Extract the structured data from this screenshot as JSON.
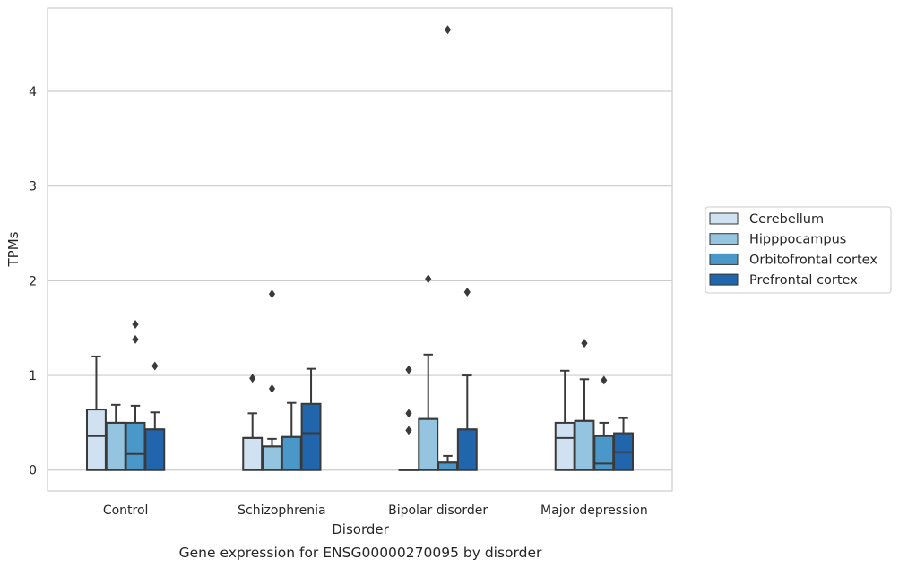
{
  "chart_data": {
    "type": "boxplot",
    "title": "",
    "xlabel": "Disorder",
    "ylabel": "TPMs",
    "caption": "Gene expression for ENSG00000270095 by disorder",
    "ylim": [
      -0.22,
      4.88
    ],
    "yticks": [
      0,
      1,
      2,
      3,
      4
    ],
    "grid": "horizontal",
    "legend_position": "right",
    "categories": [
      "Control",
      "Schizophrenia",
      "Bipolar disorder",
      "Major depression"
    ],
    "series": [
      {
        "name": "Cerebellum",
        "color": "#d0e1f2",
        "boxes": [
          {
            "q1": 0,
            "median": 0.36,
            "q3": 0.64,
            "whisker_low": 0,
            "whisker_high": 1.2,
            "fliers": []
          },
          {
            "q1": 0,
            "median": 0.34,
            "q3": 0.34,
            "whisker_low": 0,
            "whisker_high": 0.6,
            "fliers": [
              0.97
            ]
          },
          {
            "q1": 0,
            "median": 0,
            "q3": 0,
            "whisker_low": 0,
            "whisker_high": 0,
            "fliers": [
              0.42,
              0.6,
              1.06
            ]
          },
          {
            "q1": 0,
            "median": 0.34,
            "q3": 0.5,
            "whisker_low": 0,
            "whisker_high": 1.05,
            "fliers": []
          }
        ]
      },
      {
        "name": "Hipppocampus",
        "color": "#94c4df",
        "boxes": [
          {
            "q1": 0,
            "median": 0.5,
            "q3": 0.5,
            "whisker_low": 0,
            "whisker_high": 0.69,
            "fliers": []
          },
          {
            "q1": 0,
            "median": 0.25,
            "q3": 0.25,
            "whisker_low": 0,
            "whisker_high": 0.33,
            "fliers": [
              0.86,
              1.86
            ]
          },
          {
            "q1": 0,
            "median": 0.54,
            "q3": 0.54,
            "whisker_low": 0,
            "whisker_high": 1.22,
            "fliers": [
              2.02
            ]
          },
          {
            "q1": 0,
            "median": 0.52,
            "q3": 0.52,
            "whisker_low": 0,
            "whisker_high": 0.96,
            "fliers": [
              1.34
            ]
          }
        ]
      },
      {
        "name": "Orbitofrontal cortex",
        "color": "#4a98c9",
        "boxes": [
          {
            "q1": 0,
            "median": 0.17,
            "q3": 0.5,
            "whisker_low": 0,
            "whisker_high": 0.68,
            "fliers": [
              1.38,
              1.54
            ]
          },
          {
            "q1": 0,
            "median": 0.35,
            "q3": 0.35,
            "whisker_low": 0,
            "whisker_high": 0.71,
            "fliers": []
          },
          {
            "q1": 0,
            "median": 0.08,
            "q3": 0.08,
            "whisker_low": 0,
            "whisker_high": 0.15,
            "fliers": [
              4.65
            ]
          },
          {
            "q1": 0,
            "median": 0.07,
            "q3": 0.36,
            "whisker_low": 0,
            "whisker_high": 0.5,
            "fliers": [
              0.95
            ]
          }
        ]
      },
      {
        "name": "Prefrontal cortex",
        "color": "#2166ac",
        "boxes": [
          {
            "q1": 0,
            "median": 0.43,
            "q3": 0.43,
            "whisker_low": 0,
            "whisker_high": 0.61,
            "fliers": [
              1.1
            ]
          },
          {
            "q1": 0,
            "median": 0.39,
            "q3": 0.7,
            "whisker_low": 0,
            "whisker_high": 1.07,
            "fliers": []
          },
          {
            "q1": 0,
            "median": 0.43,
            "q3": 0.43,
            "whisker_low": 0,
            "whisker_high": 1.0,
            "fliers": [
              1.88
            ]
          },
          {
            "q1": 0,
            "median": 0.19,
            "q3": 0.39,
            "whisker_low": 0,
            "whisker_high": 0.55,
            "fliers": []
          }
        ]
      }
    ]
  }
}
